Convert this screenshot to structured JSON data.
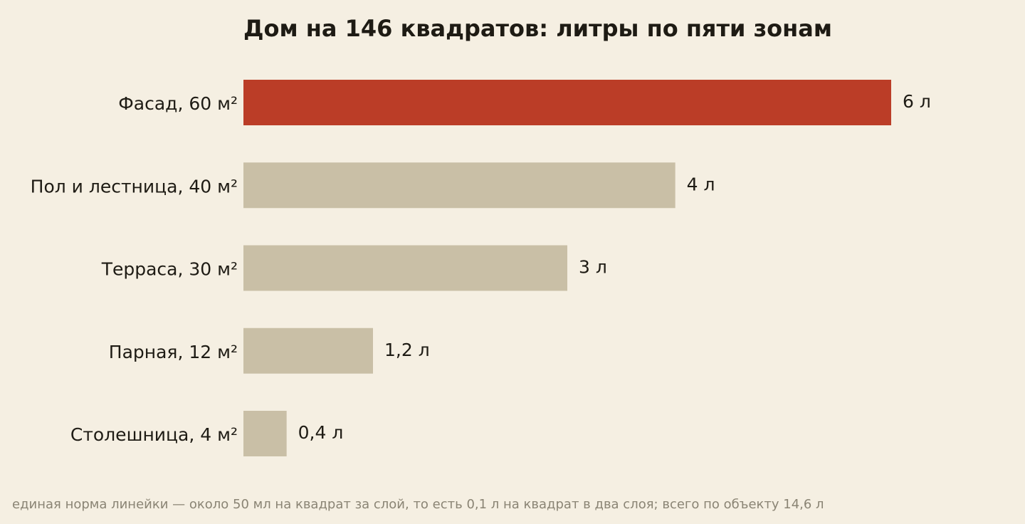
{
  "chart_data": {
    "type": "bar",
    "orientation": "horizontal",
    "title": "Дом на 146 квадратов: литры по пяти зонам",
    "categories": [
      "Фасад, 60 м²",
      "Пол и лестница, 40 м²",
      "Терраса, 30 м²",
      "Парная, 12 м²",
      "Столешница, 4 м²"
    ],
    "values": [
      6,
      4,
      3,
      1.2,
      0.4
    ],
    "value_labels": [
      "6 л",
      "4 л",
      "3 л",
      "1,2 л",
      "0,4 л"
    ],
    "xlim": [
      0,
      6
    ],
    "grid": false,
    "legend": "none",
    "colors": {
      "highlight": "#bb3d27",
      "default": "#c9bfa6"
    },
    "highlighted_index": 0
  },
  "note": "единая норма линейки — около 50 мл на квадрат за слой, то есть 0,1 л на квадрат в два слоя; всего по объекту 14,6 л"
}
